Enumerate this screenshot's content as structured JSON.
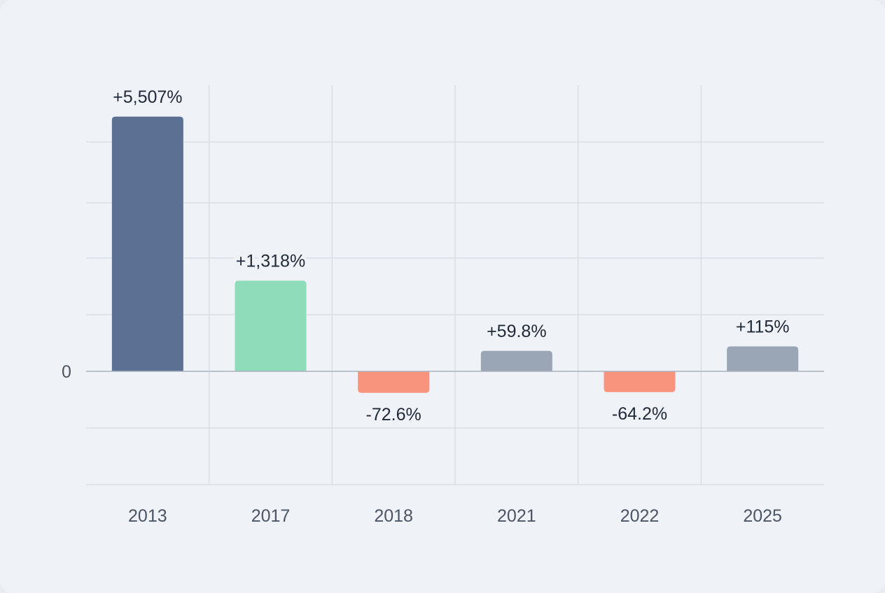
{
  "chart_data": {
    "type": "bar",
    "categories": [
      "2013",
      "2017",
      "2018",
      "2021",
      "2022",
      "2025"
    ],
    "values": [
      5507,
      1318,
      -72.6,
      59.8,
      -64.2,
      115
    ],
    "data_labels": [
      "+5,507%",
      "+1,318%",
      "-72.6%",
      "+59.8%",
      "-64.2%",
      "+115%"
    ],
    "y_tick_labels": [
      "0"
    ],
    "title": "",
    "xlabel": "",
    "ylabel": "",
    "grid": true,
    "colors": [
      "#5a7194",
      "#8edcb9",
      "#f8947e",
      "#9aa6b6",
      "#f8947e",
      "#9aa6b6"
    ]
  }
}
